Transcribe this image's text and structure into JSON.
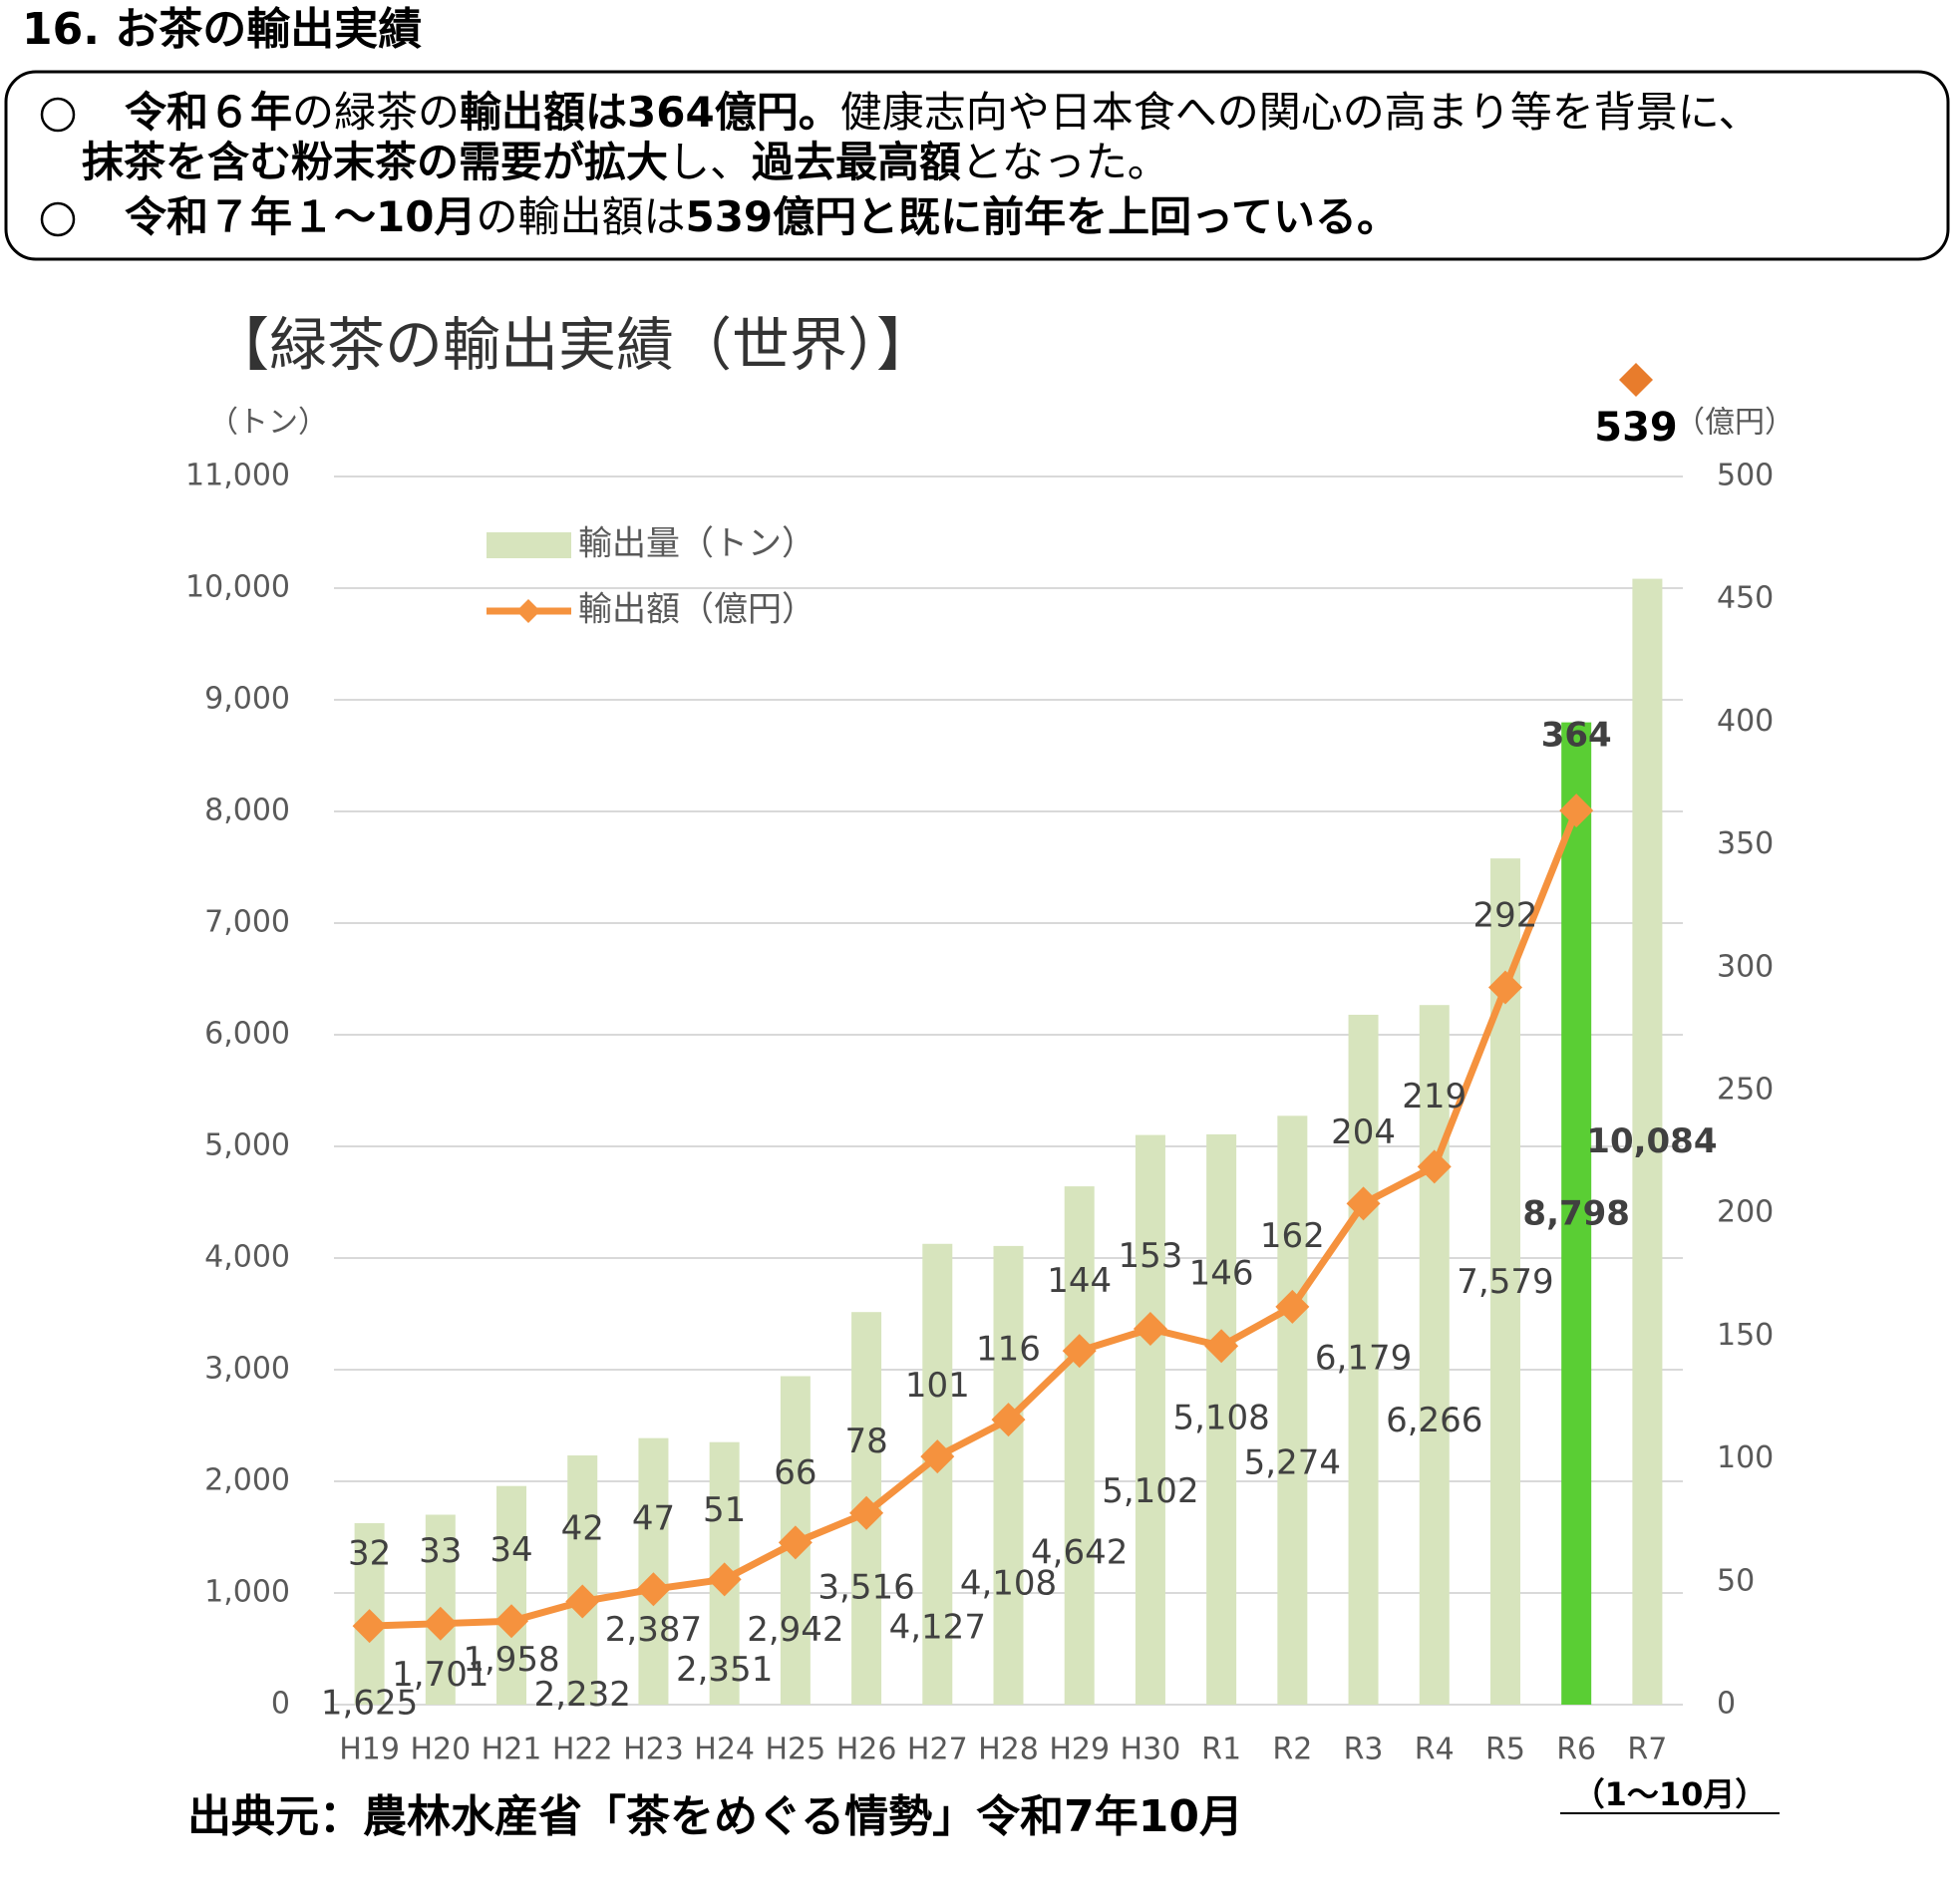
{
  "header": {
    "title": "16. お茶の輸出実績",
    "bullets": [
      {
        "lines": [
          [
            {
              "text": "令和６年",
              "bold": true
            },
            {
              "text": "の緑茶の",
              "bold": false
            },
            {
              "text": "輸出額は364億円。",
              "bold": true
            },
            {
              "text": "健康志向や日本食への関心の高まり等を背景に、",
              "bold": false
            }
          ],
          [
            {
              "text": "抹茶を含む粉末茶の需要が拡大",
              "bold": true
            },
            {
              "text": "し、",
              "bold": false
            },
            {
              "text": "過去最高額",
              "bold": true
            },
            {
              "text": "となった。",
              "bold": false
            }
          ]
        ]
      },
      {
        "lines": [
          [
            {
              "text": "令和７年１～10月",
              "bold": true
            },
            {
              "text": "の輸出額は",
              "bold": false
            },
            {
              "text": "539億円と既に前年を上回っている。",
              "bold": true
            }
          ]
        ]
      }
    ]
  },
  "chart_data": {
    "type": "bar_line",
    "title": "【緑茶の輸出実績（世界）】",
    "ylabel": "（トン）",
    "y2label": "（億円）",
    "categories": [
      "H19",
      "H20",
      "H21",
      "H22",
      "H23",
      "H24",
      "H25",
      "H26",
      "H27",
      "H28",
      "H29",
      "H30",
      "R1",
      "R2",
      "R3",
      "R4",
      "R5",
      "R6",
      "R7"
    ],
    "category_note": "（1～10月）",
    "series": [
      {
        "name": "輸出量（トン）",
        "type": "bar",
        "color": "#d7e4bd",
        "colors": [
          "#d7e4bd",
          "#d7e4bd",
          "#d7e4bd",
          "#d7e4bd",
          "#d7e4bd",
          "#d7e4bd",
          "#d7e4bd",
          "#d7e4bd",
          "#d7e4bd",
          "#d7e4bd",
          "#d7e4bd",
          "#d7e4bd",
          "#d7e4bd",
          "#d7e4bd",
          "#d7e4bd",
          "#d7e4bd",
          "#d7e4bd",
          "#5ace34",
          "#d7e4bd"
        ],
        "values": [
          1625,
          1701,
          1958,
          2232,
          2387,
          2351,
          2942,
          3516,
          4127,
          4108,
          4642,
          5102,
          5108,
          5274,
          6179,
          6266,
          7579,
          8798,
          10084
        ],
        "value_labels": [
          "1,625",
          "1,701",
          "1,958",
          "2,232",
          "2,387",
          "2,351",
          "2,942",
          "3,516",
          "4,127",
          "4,108",
          "4,642",
          "5,102",
          "5,108",
          "5,274",
          "6,179",
          "6,266",
          "7,579",
          "8,798",
          "10,084"
        ]
      },
      {
        "name": "輸出額（億円）",
        "type": "line",
        "axis": "y2",
        "color": "#f5923e",
        "values": [
          32,
          33,
          34,
          42,
          47,
          51,
          66,
          78,
          101,
          116,
          144,
          153,
          146,
          162,
          204,
          219,
          292,
          364,
          null
        ]
      }
    ],
    "annotation": {
      "value": 539,
      "color": "#e87c2c"
    },
    "ylim": [
      0,
      11000
    ],
    "yticks": [
      0,
      {
        "value": 1000,
        "label": "1,000"
      },
      {
        "value": 2000,
        "label": "2,000"
      },
      {
        "value": 3000,
        "label": "3,000"
      },
      {
        "value": 4000,
        "label": "4,000"
      },
      {
        "value": 5000,
        "label": "5,000"
      },
      {
        "value": 6000,
        "label": "6,000"
      },
      {
        "value": 7000,
        "label": "7,000"
      },
      {
        "value": 8000,
        "label": "8,000"
      },
      {
        "value": 9000,
        "label": "9,000"
      },
      {
        "value": 10000,
        "label": "10,000"
      },
      {
        "value": 11000,
        "label": "11,000"
      }
    ],
    "y2lim": [
      0,
      500
    ],
    "y2ticks": [
      0,
      50,
      100,
      150,
      200,
      250,
      300,
      350,
      400,
      450,
      500
    ],
    "grid": true,
    "legend": "upper left"
  },
  "source": "出典元：農林水産省「茶をめぐる情勢」令和7年10月"
}
